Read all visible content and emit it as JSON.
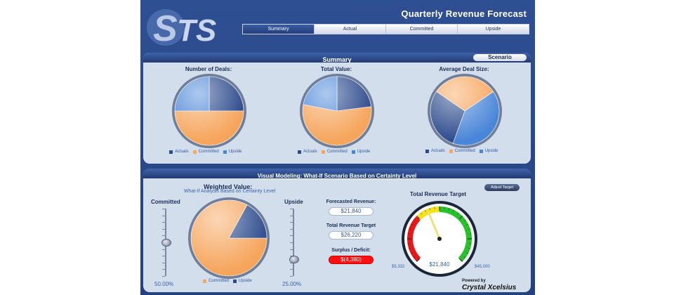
{
  "header": {
    "title": "Quarterly Revenue Forecast",
    "logo_text": "TS"
  },
  "tabs": [
    {
      "label": "Summary",
      "active": true
    },
    {
      "label": "Actual",
      "active": false
    },
    {
      "label": "Committed",
      "active": false
    },
    {
      "label": "Upside",
      "active": false
    }
  ],
  "summary": {
    "title": "Summary",
    "scenario_button": "Scenario"
  },
  "legend": {
    "actuals": "Actuals",
    "committed": "Committed",
    "upside": "Upside"
  },
  "colors": {
    "actuals": "#2c4a8c",
    "committed": "#f6a55c",
    "upside": "#4a86d8",
    "panel": "#d3deec",
    "header": "#2f4f93",
    "deficit": "#ff1010"
  },
  "modeling": {
    "title": "Visual Modeling: What-If Scenario Based on Certainty Level",
    "weighted_title": "Weighted Value:",
    "weighted_subtitle": "What-If Analysis Based on Certainty Level",
    "committed_label": "Committed",
    "upside_label": "Upside",
    "committed_pct": "50.00%",
    "upside_pct": "25.00%",
    "committed_slider": 0.5,
    "upside_slider": 0.25,
    "forecast_label": "Forecasted Revenue:",
    "forecast_value": "$21,840",
    "target_label": "Total Revenue Target",
    "target_value": "$26,220",
    "surplus_label": "Surplus / Deficit:",
    "surplus_value": "$(4,380)",
    "adjust_button": "Adjust Target",
    "gauge_title": "Total Revenue Target",
    "gauge_min": "$5,332",
    "gauge_max": "$45,000",
    "gauge_value": "$21,840",
    "powered_by": "Powered by",
    "brand": "Crystal Xcelsius"
  },
  "chart_data": [
    {
      "type": "pie",
      "title": "Number of Deals:",
      "categories": [
        "Actuals",
        "Committed",
        "Upside"
      ],
      "values": [
        25,
        50,
        25
      ]
    },
    {
      "type": "pie",
      "title": "Total Value:",
      "categories": [
        "Actuals",
        "Committed",
        "Upside"
      ],
      "values": [
        23,
        55,
        22
      ]
    },
    {
      "type": "pie",
      "title": "Average Deal Size:",
      "categories": [
        "Actuals",
        "Committed",
        "Upside"
      ],
      "values": [
        29,
        31,
        40
      ]
    },
    {
      "type": "pie",
      "title": "Weighted Value:",
      "categories": [
        "Committed",
        "Upside"
      ],
      "values": [
        83,
        17
      ]
    },
    {
      "type": "gauge",
      "title": "Total Revenue Target",
      "min": 5332,
      "max": 45000,
      "value": 21840
    }
  ]
}
